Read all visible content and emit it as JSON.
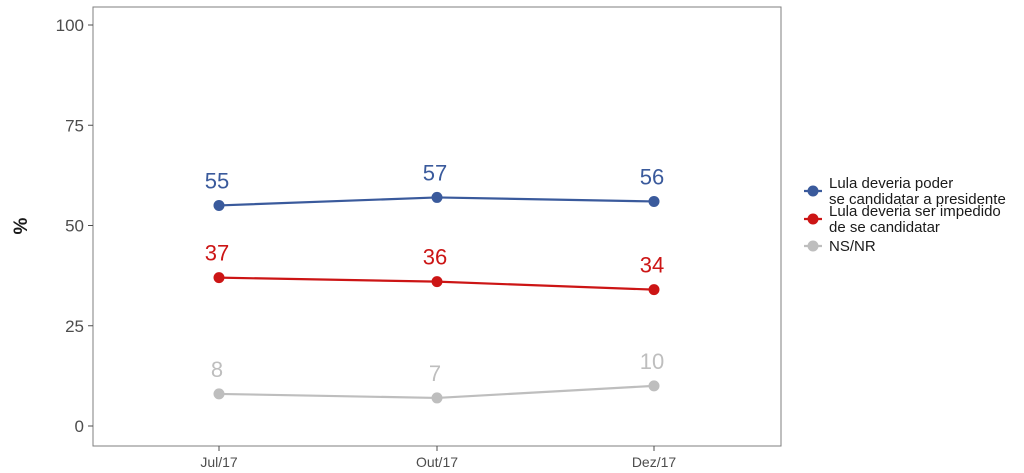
{
  "chart_data": {
    "type": "line",
    "title": "",
    "xlabel": "",
    "ylabel": "%",
    "categories": [
      "Jul/17",
      "Out/17",
      "Dez/17"
    ],
    "ylim": [
      0,
      100
    ],
    "yticks": [
      0,
      25,
      50,
      75,
      100
    ],
    "grid": false,
    "legend_position": "right",
    "series": [
      {
        "name": "Lula deveria poder\nse candidatar a presidente",
        "color": "#3a5a9c",
        "values": [
          55,
          57,
          56
        ]
      },
      {
        "name": "Lula deveria ser impedido\nde se candidatar",
        "color": "#cc1515",
        "values": [
          37,
          36,
          34
        ]
      },
      {
        "name": "NS/NR",
        "color": "#bebebe",
        "values": [
          8,
          7,
          10
        ]
      }
    ]
  }
}
